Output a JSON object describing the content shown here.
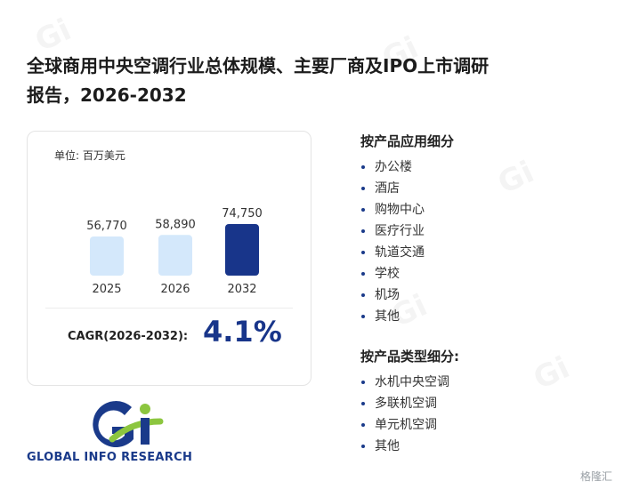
{
  "title_line1": "全球商用中央空调行业总体规模、主要厂商及IPO上市调研",
  "title_line2": "报告，2026-2032",
  "unit": "单位: 百万美元",
  "chart_data": {
    "type": "bar",
    "categories": [
      "2025",
      "2026",
      "2032"
    ],
    "values": [
      56770,
      58890,
      74750
    ],
    "value_labels": [
      "56,770",
      "58,890",
      "74,750"
    ],
    "highlight_index": 2,
    "colors": {
      "normal": "#d4e8fb",
      "highlight": "#18358a"
    }
  },
  "cagr": {
    "label": "CAGR(2026-2032):",
    "value": "4.1%"
  },
  "logo": {
    "text": "GLOBAL INFO RESEARCH",
    "mark": "GI"
  },
  "application_segments": {
    "title": "按产品应用细分",
    "items": [
      "办公楼",
      "酒店",
      "购物中心",
      "医疗行业",
      "轨道交通",
      "学校",
      "机场",
      "其他"
    ]
  },
  "type_segments": {
    "title": "按产品类型细分:",
    "items": [
      "水机中央空调",
      "多联机空调",
      "单元机空调",
      "其他"
    ]
  },
  "brand": "格隆汇"
}
